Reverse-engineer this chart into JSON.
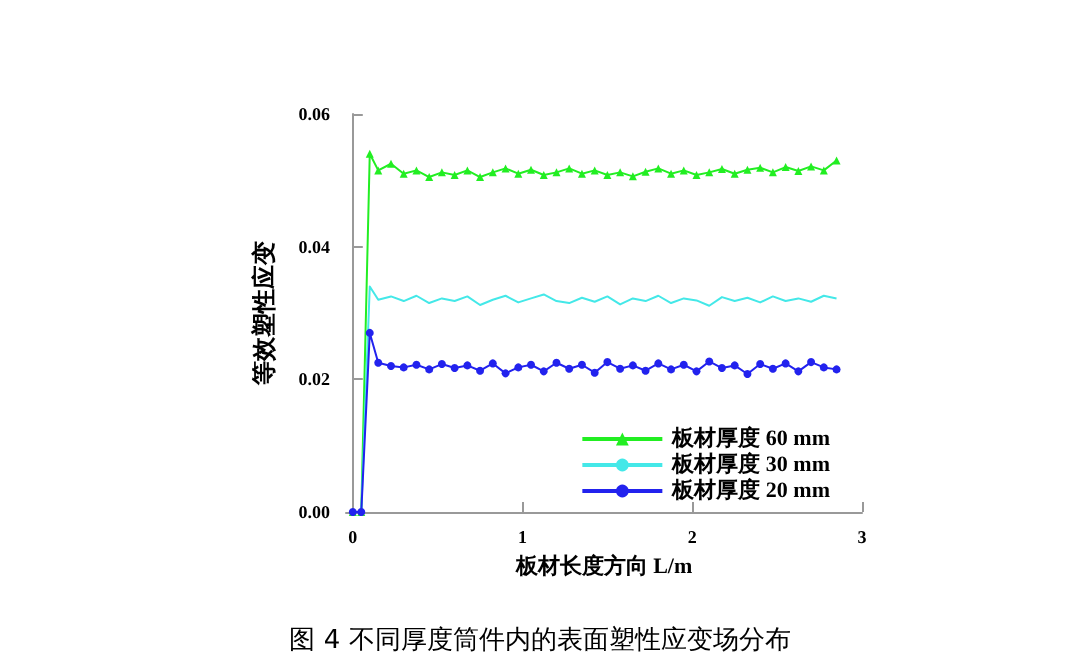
{
  "chart_data": {
    "type": "line",
    "xlabel": "板材长度方向 L/m",
    "ylabel": "等效塑性应变",
    "annotations": [
      "图 4 不同厚度筒件内的表面塑性应变场分布"
    ],
    "x": [
      0,
      0.05,
      0.1,
      0.15,
      0.225,
      0.3,
      0.375,
      0.45,
      0.525,
      0.6,
      0.675,
      0.75,
      0.825,
      0.9,
      0.975,
      1.05,
      1.125,
      1.2,
      1.275,
      1.35,
      1.425,
      1.5,
      1.575,
      1.65,
      1.725,
      1.8,
      1.875,
      1.95,
      2.025,
      2.1,
      2.175,
      2.25,
      2.325,
      2.4,
      2.475,
      2.55,
      2.625,
      2.7,
      2.775,
      2.85
    ],
    "series": [
      {
        "name": "板材厚度 60 mm",
        "color": "#22ee22",
        "marker": "triangle",
        "values": [
          0,
          0,
          0.054,
          0.0515,
          0.0525,
          0.051,
          0.0515,
          0.0505,
          0.0512,
          0.0508,
          0.0515,
          0.0505,
          0.0512,
          0.0518,
          0.051,
          0.0516,
          0.0508,
          0.0512,
          0.0518,
          0.051,
          0.0515,
          0.0508,
          0.0512,
          0.0506,
          0.0513,
          0.0518,
          0.051,
          0.0515,
          0.0508,
          0.0512,
          0.0517,
          0.051,
          0.0516,
          0.0519,
          0.0512,
          0.052,
          0.0514,
          0.0521,
          0.0515,
          0.053
        ]
      },
      {
        "name": "板材厚度 30 mm",
        "color": "#44e8e8",
        "marker": "none",
        "values": [
          0,
          0,
          0.034,
          0.032,
          0.0325,
          0.0318,
          0.0326,
          0.0315,
          0.0322,
          0.0318,
          0.0325,
          0.0312,
          0.032,
          0.0326,
          0.0316,
          0.0322,
          0.0328,
          0.0318,
          0.0315,
          0.0323,
          0.0317,
          0.0325,
          0.0313,
          0.0322,
          0.0318,
          0.0326,
          0.0315,
          0.0322,
          0.0319,
          0.0311,
          0.0324,
          0.0318,
          0.0323,
          0.0316,
          0.0325,
          0.0318,
          0.0322,
          0.0317,
          0.0326,
          0.0322
        ]
      },
      {
        "name": "板材厚度 20 mm",
        "color": "#2222ee",
        "marker": "circle",
        "values": [
          0,
          0,
          0.027,
          0.0225,
          0.022,
          0.0218,
          0.0222,
          0.0215,
          0.0223,
          0.0217,
          0.0221,
          0.0213,
          0.0224,
          0.0209,
          0.0218,
          0.0222,
          0.0212,
          0.0225,
          0.0216,
          0.0222,
          0.021,
          0.0226,
          0.0216,
          0.0221,
          0.0213,
          0.0224,
          0.0215,
          0.0222,
          0.0212,
          0.0227,
          0.0217,
          0.0221,
          0.0208,
          0.0223,
          0.0216,
          0.0224,
          0.0212,
          0.0226,
          0.0218,
          0.0215
        ]
      }
    ],
    "xlim": [
      -0.04,
      3
    ],
    "xticks": [
      0,
      1,
      2,
      3
    ],
    "ylim": [
      0,
      0.06
    ],
    "yticks": [
      {
        "value": 0,
        "label": "0.00"
      },
      {
        "value": 0.02,
        "label": "0.02"
      },
      {
        "value": 0.04,
        "label": "0.04"
      },
      {
        "value": 0.06,
        "label": "0.06"
      }
    ],
    "grid": false,
    "legend": "bottom right"
  }
}
